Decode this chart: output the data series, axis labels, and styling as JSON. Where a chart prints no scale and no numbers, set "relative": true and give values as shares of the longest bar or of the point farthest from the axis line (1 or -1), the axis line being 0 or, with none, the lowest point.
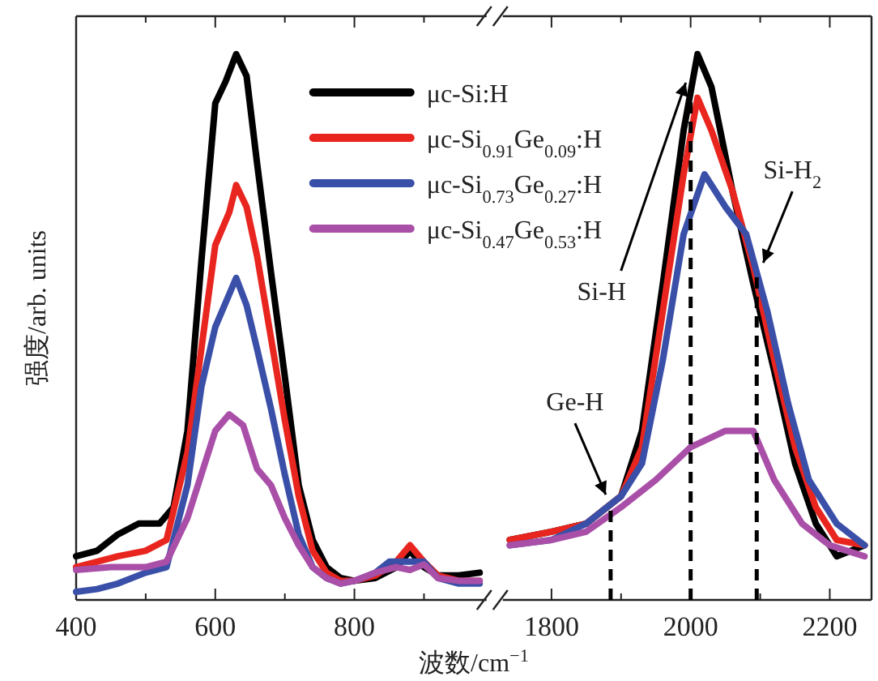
{
  "chart_data": [
    {
      "type": "line",
      "relative": true,
      "line_style": "solid",
      "tick_labels": "x",
      "legend": "top right",
      "ylabel": "强度/arb. units",
      "xlim": [
        400,
        990
      ],
      "xticks": [
        400,
        {
          "value": 500,
          "label": null
        },
        600,
        {
          "value": 700,
          "label": null
        },
        800,
        {
          "value": 900,
          "label": null
        }
      ],
      "series": [
        {
          "name": "μc-Si:H",
          "color": "#000000",
          "x": [
            400,
            430,
            460,
            490,
            520,
            540,
            560,
            580,
            600,
            615,
            630,
            645,
            660,
            680,
            700,
            720,
            740,
            760,
            780,
            800,
            830,
            860,
            880,
            900,
            920,
            950,
            980
          ],
          "values": [
            0.08,
            0.09,
            0.12,
            0.14,
            0.14,
            0.17,
            0.31,
            0.62,
            0.91,
            0.95,
            1.0,
            0.96,
            0.8,
            0.6,
            0.41,
            0.21,
            0.11,
            0.06,
            0.04,
            0.035,
            0.04,
            0.06,
            0.09,
            0.06,
            0.045,
            0.045,
            0.05
          ]
        },
        {
          "name": "μc-Si$_{0.91}$Ge$_{0.09}$:H",
          "color": "#e8251f",
          "x": [
            400,
            430,
            460,
            500,
            530,
            560,
            580,
            600,
            620,
            630,
            645,
            660,
            680,
            700,
            720,
            740,
            760,
            780,
            800,
            830,
            860,
            880,
            900,
            920,
            950,
            980
          ],
          "values": [
            0.06,
            0.07,
            0.08,
            0.09,
            0.11,
            0.27,
            0.46,
            0.65,
            0.71,
            0.76,
            0.72,
            0.63,
            0.48,
            0.33,
            0.19,
            0.09,
            0.05,
            0.035,
            0.035,
            0.045,
            0.07,
            0.1,
            0.07,
            0.045,
            0.035,
            0.035
          ]
        },
        {
          "name": "μc-Si$_{0.73}$Ge$_{0.27}$:H",
          "color": "#3a4fa8",
          "x": [
            400,
            430,
            460,
            500,
            530,
            560,
            580,
            600,
            630,
            645,
            660,
            680,
            700,
            720,
            740,
            760,
            780,
            800,
            830,
            850,
            880,
            900,
            920,
            950,
            980
          ],
          "values": [
            0.015,
            0.02,
            0.03,
            0.05,
            0.06,
            0.21,
            0.39,
            0.5,
            0.59,
            0.54,
            0.46,
            0.35,
            0.23,
            0.12,
            0.06,
            0.04,
            0.03,
            0.035,
            0.05,
            0.07,
            0.07,
            0.07,
            0.04,
            0.03,
            0.03
          ]
        },
        {
          "name": "μc-Si$_{0.47}$Ge$_{0.53}$:H",
          "color": "#a94fa8",
          "x": [
            400,
            450,
            500,
            530,
            560,
            580,
            600,
            620,
            640,
            660,
            680,
            700,
            720,
            740,
            760,
            780,
            800,
            830,
            860,
            880,
            900,
            920,
            950,
            980
          ],
          "values": [
            0.055,
            0.06,
            0.06,
            0.07,
            0.15,
            0.23,
            0.31,
            0.34,
            0.32,
            0.24,
            0.21,
            0.15,
            0.1,
            0.06,
            0.04,
            0.03,
            0.035,
            0.05,
            0.06,
            0.055,
            0.065,
            0.04,
            0.035,
            0.035
          ]
        }
      ]
    },
    {
      "type": "line",
      "relative": true,
      "line_style": "solid",
      "tick_labels": "x",
      "xlabel": "波数/cm$^{−1}$",
      "xlim": [
        1730,
        2260
      ],
      "xticks": [
        1800,
        {
          "value": 1900,
          "label": null
        },
        2000,
        {
          "value": 2100,
          "label": null
        },
        2200
      ],
      "ref_lines": [
        {
          "axis": "x",
          "value": 1885,
          "label": "Ge-H",
          "line_style": "dashed"
        },
        {
          "axis": "x",
          "value": 2000,
          "label": "Si-H",
          "line_style": "dashed"
        },
        {
          "axis": "x",
          "value": 2095,
          "label": "Si-H$_{2}$",
          "line_style": "dashed"
        }
      ],
      "series": [
        {
          "color": "#000000",
          "x": [
            1740,
            1800,
            1850,
            1900,
            1930,
            1960,
            1990,
            2010,
            2030,
            2060,
            2090,
            2120,
            2150,
            2180,
            2210,
            2250
          ],
          "values": [
            0.11,
            0.125,
            0.14,
            0.19,
            0.31,
            0.58,
            0.86,
            1.0,
            0.94,
            0.75,
            0.58,
            0.42,
            0.25,
            0.14,
            0.08,
            0.1
          ]
        },
        {
          "color": "#e8251f",
          "x": [
            1740,
            1800,
            1850,
            1900,
            1930,
            1960,
            1990,
            2010,
            2030,
            2060,
            2090,
            2120,
            2150,
            2180,
            2210,
            2250
          ],
          "values": [
            0.11,
            0.125,
            0.14,
            0.19,
            0.28,
            0.53,
            0.78,
            0.92,
            0.86,
            0.75,
            0.61,
            0.44,
            0.28,
            0.17,
            0.11,
            0.1
          ]
        },
        {
          "color": "#3a4fa8",
          "x": [
            1740,
            1800,
            1850,
            1900,
            1930,
            1960,
            1990,
            2020,
            2050,
            2080,
            2110,
            2140,
            2170,
            2210,
            2250
          ],
          "values": [
            0.1,
            0.11,
            0.14,
            0.19,
            0.25,
            0.44,
            0.67,
            0.78,
            0.72,
            0.67,
            0.53,
            0.36,
            0.22,
            0.14,
            0.1
          ]
        },
        {
          "color": "#a94fa8",
          "x": [
            1740,
            1800,
            1850,
            1900,
            1950,
            2000,
            2050,
            2090,
            2120,
            2160,
            2200,
            2250
          ],
          "values": [
            0.1,
            0.11,
            0.125,
            0.17,
            0.22,
            0.28,
            0.31,
            0.31,
            0.22,
            0.14,
            0.1,
            0.08
          ]
        }
      ]
    }
  ]
}
